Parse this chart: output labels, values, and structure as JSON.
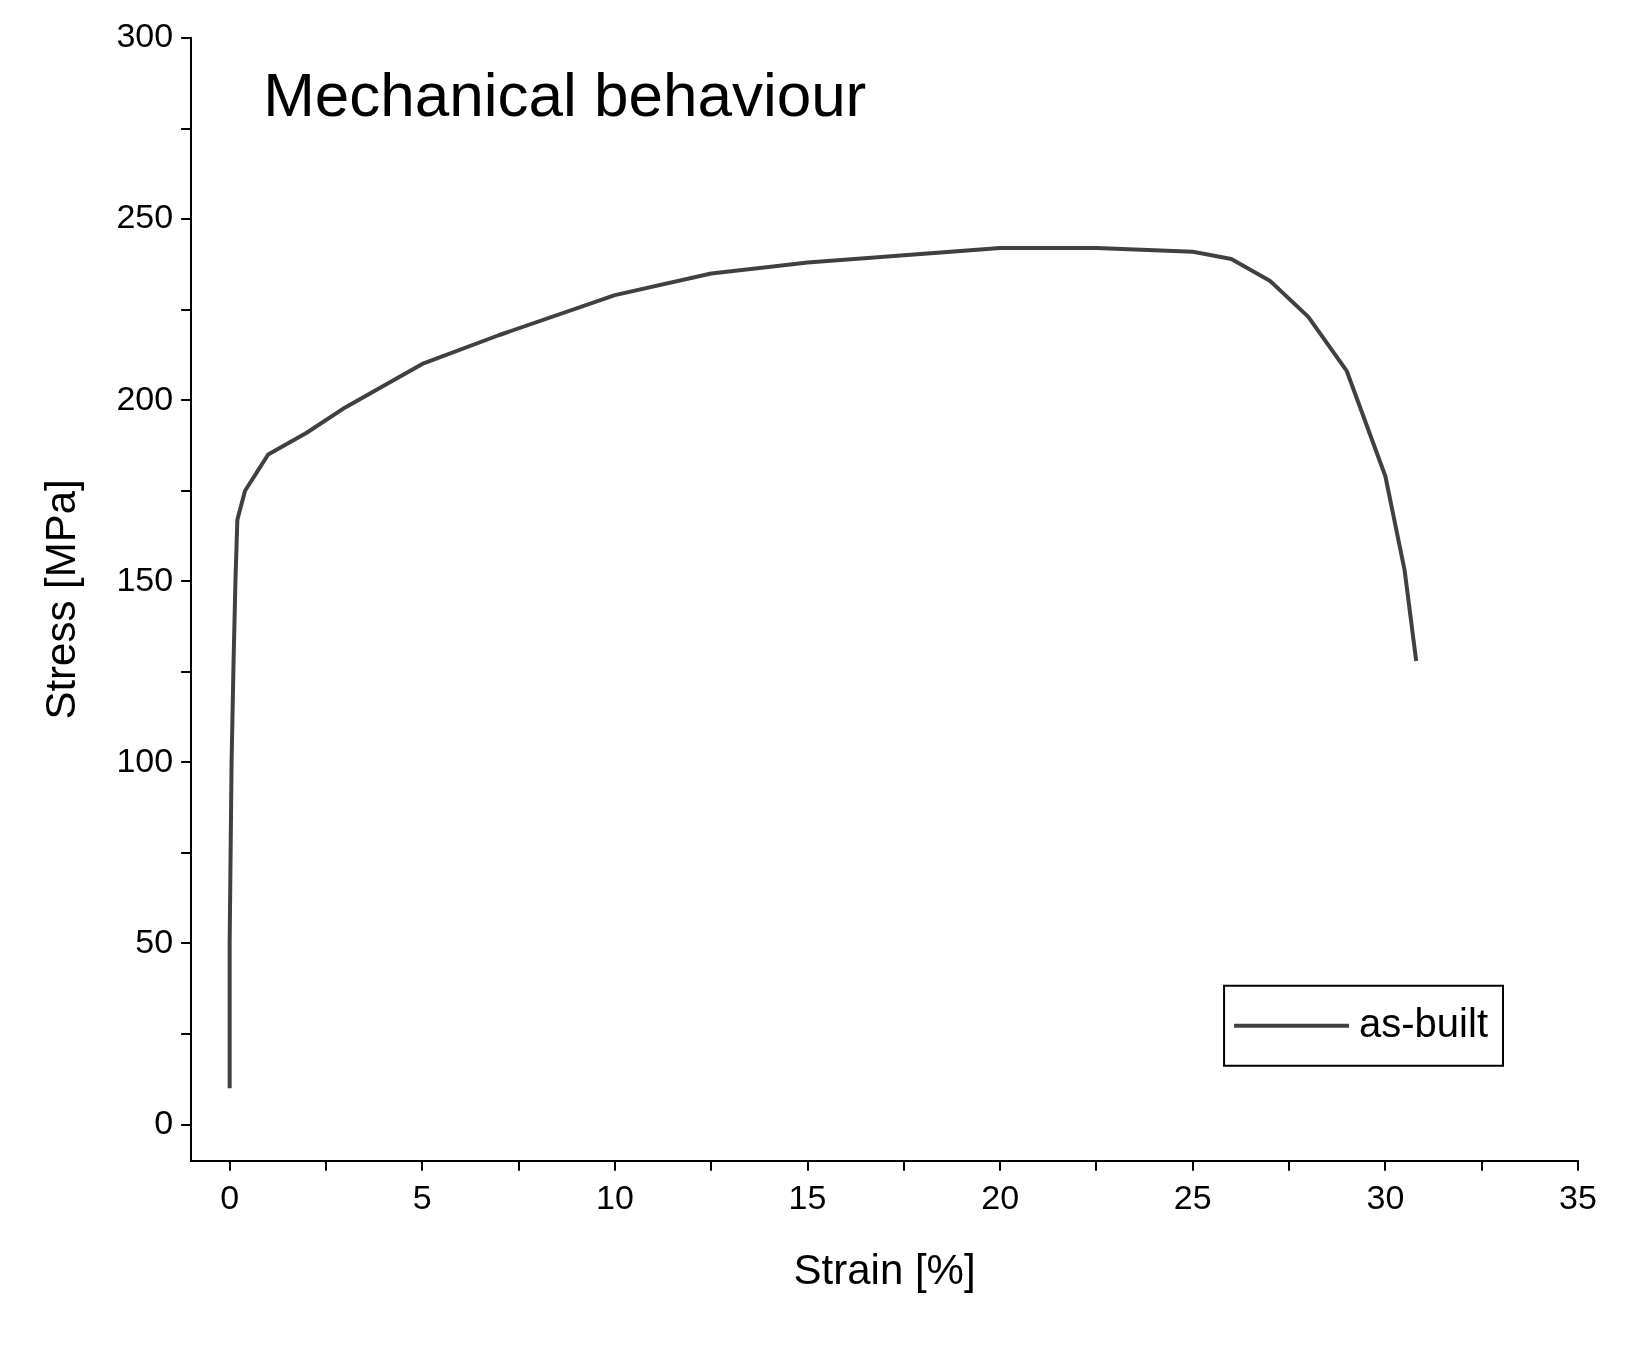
{
  "chart_data": {
    "type": "line",
    "title": "Mechanical behaviour",
    "xlabel": "Strain [%]",
    "ylabel": "Stress [MPa]",
    "xlim": [
      -1,
      35
    ],
    "xticks": [
      0,
      {
        "value": 2.5,
        "label": null
      },
      5,
      {
        "value": 7.5,
        "label": null
      },
      10,
      {
        "value": 12.5,
        "label": null
      },
      15,
      {
        "value": 17.5,
        "label": null
      },
      20,
      {
        "value": 22.5,
        "label": null
      },
      25,
      {
        "value": 27.5,
        "label": null
      },
      30,
      {
        "value": 32.5,
        "label": null
      },
      35
    ],
    "ylim": [
      -10,
      300
    ],
    "yticks": [
      0,
      {
        "value": 25,
        "label": null
      },
      50,
      {
        "value": 75,
        "label": null
      },
      100,
      {
        "value": 125,
        "label": null
      },
      150,
      {
        "value": 175,
        "label": null
      },
      200,
      {
        "value": 225,
        "label": null
      },
      250,
      {
        "value": 275,
        "label": null
      },
      300
    ],
    "grid": false,
    "legend": "bottom right",
    "marker": "none",
    "line_style": "solid",
    "series": [
      {
        "name": "as-built",
        "color": "#404040",
        "x": [
          0,
          0,
          0.05,
          0.1,
          0.15,
          0.2,
          0.4,
          1,
          2,
          3,
          5,
          7,
          10,
          12.5,
          15,
          17.5,
          20,
          22.5,
          25,
          26,
          27,
          28,
          29,
          30,
          30.5,
          30.8
        ],
        "values": [
          10,
          50,
          100,
          127,
          150,
          167,
          175,
          185,
          191,
          198,
          210,
          218,
          229,
          235,
          238,
          240,
          242,
          242,
          241,
          239,
          233,
          223,
          208,
          179,
          153,
          128
        ]
      }
    ]
  }
}
